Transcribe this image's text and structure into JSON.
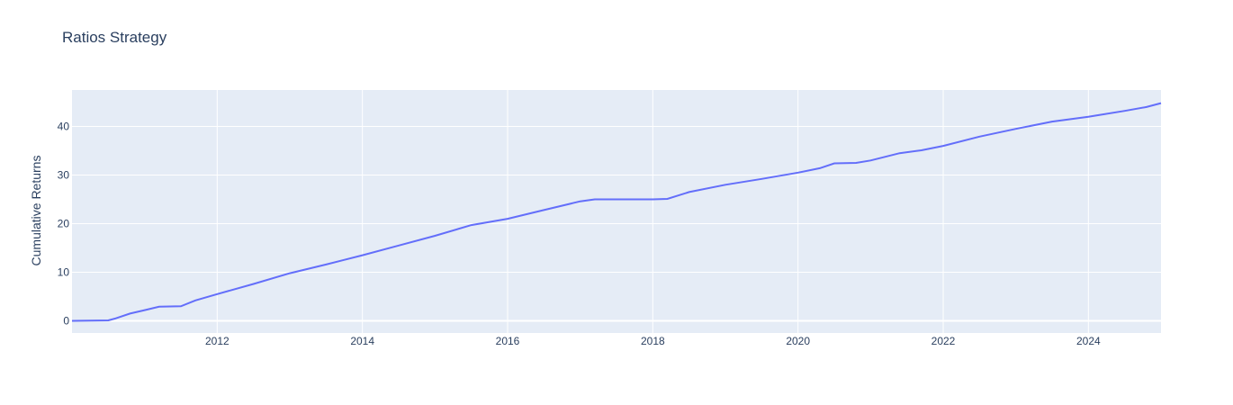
{
  "chart_data": {
    "type": "line",
    "title": "Ratios Strategy",
    "xlabel": "",
    "ylabel": "Cumulative Returns",
    "xlim": [
      2010.0,
      2025.0
    ],
    "ylim": [
      -2.5,
      47.5
    ],
    "x_ticks": [
      {
        "value": 2012,
        "label": "2012"
      },
      {
        "value": 2014,
        "label": "2014"
      },
      {
        "value": 2016,
        "label": "2016"
      },
      {
        "value": 2018,
        "label": "2018"
      },
      {
        "value": 2020,
        "label": "2020"
      },
      {
        "value": 2022,
        "label": "2022"
      },
      {
        "value": 2024,
        "label": "2024"
      }
    ],
    "y_ticks": [
      {
        "value": 0,
        "label": "0"
      },
      {
        "value": 10,
        "label": "10"
      },
      {
        "value": 20,
        "label": "20"
      },
      {
        "value": 30,
        "label": "30"
      },
      {
        "value": 40,
        "label": "40"
      }
    ],
    "grid": true,
    "colors": {
      "line": "#636efa",
      "plot_bg": "#e5ecf6",
      "grid": "#ffffff"
    },
    "series": [
      {
        "x": [
          2010.0,
          2010.5,
          2010.6,
          2010.8,
          2011.0,
          2011.2,
          2011.5,
          2011.7,
          2012.0,
          2012.5,
          2013.0,
          2013.5,
          2014.0,
          2014.5,
          2015.0,
          2015.5,
          2016.0,
          2016.5,
          2017.0,
          2017.2,
          2017.5,
          2018.0,
          2018.2,
          2018.5,
          2019.0,
          2019.5,
          2020.0,
          2020.3,
          2020.5,
          2020.8,
          2021.0,
          2021.4,
          2021.7,
          2022.0,
          2022.5,
          2023.0,
          2023.5,
          2024.0,
          2024.5,
          2024.8,
          2025.0
        ],
        "y": [
          0.0,
          0.1,
          0.5,
          1.5,
          2.2,
          2.9,
          3.0,
          4.2,
          5.5,
          7.6,
          9.8,
          11.6,
          13.5,
          15.5,
          17.5,
          19.7,
          21.0,
          22.8,
          24.6,
          25.0,
          25.0,
          25.0,
          25.1,
          26.5,
          28.0,
          29.2,
          30.5,
          31.4,
          32.4,
          32.5,
          33.0,
          34.5,
          35.1,
          36.0,
          37.9,
          39.5,
          41.0,
          42.0,
          43.2,
          44.0,
          44.8
        ]
      }
    ]
  }
}
